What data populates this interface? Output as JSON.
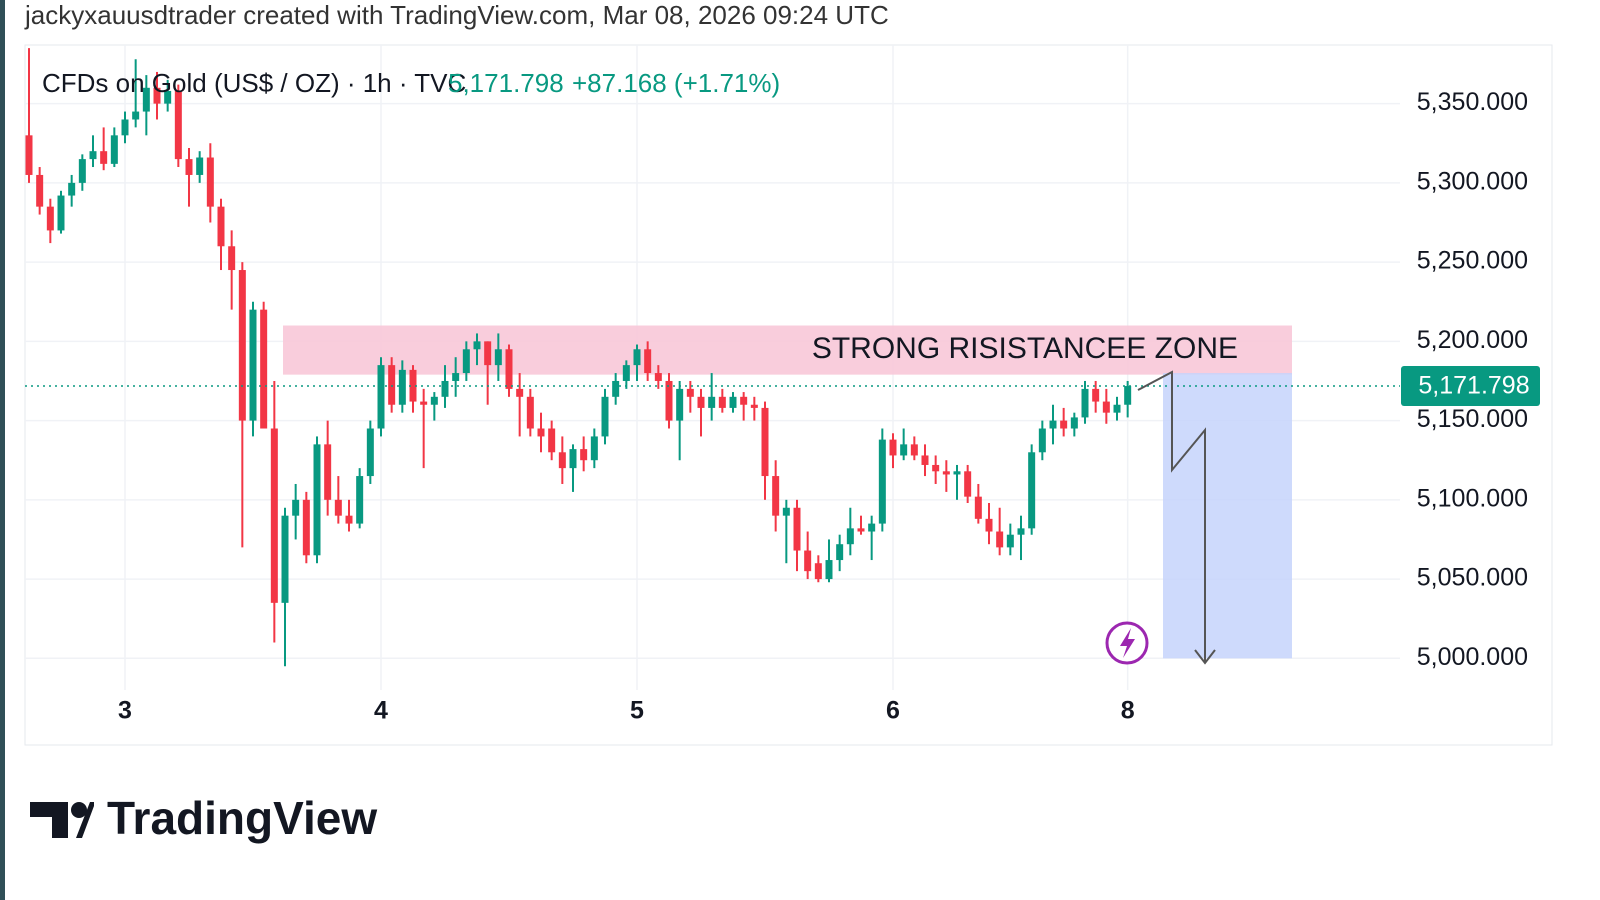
{
  "chart_data": {
    "type": "candlestick",
    "title": "jackyxauusdtrader created with TradingView.com, Mar 08, 2026 09:24 UTC",
    "symbol": "CFDs on Gold (US$ / OZ) · 1h · TVC",
    "last_price": "5,171.798",
    "change": "+87.168 (+1.71%)",
    "brand": "TradingView",
    "up_color": "#089981",
    "down_color": "#f23645",
    "grid": true,
    "ylim": [
      4980,
      5387
    ],
    "yticks": [
      {
        "value": 5000,
        "label": "5,000.000"
      },
      {
        "value": 5050,
        "label": "5,050.000"
      },
      {
        "value": 5100,
        "label": "5,100.000"
      },
      {
        "value": 5150,
        "label": "5,150.000"
      },
      {
        "value": 5200,
        "label": "5,200.000"
      },
      {
        "value": 5250,
        "label": "5,250.000"
      },
      {
        "value": 5300,
        "label": "5,300.000"
      },
      {
        "value": 5350,
        "label": "5,350.000"
      }
    ],
    "categories": [
      null,
      null,
      null,
      null,
      null,
      null,
      null,
      null,
      null,
      "3",
      null,
      null,
      null,
      null,
      null,
      null,
      null,
      null,
      null,
      null,
      null,
      null,
      null,
      null,
      null,
      null,
      null,
      null,
      null,
      null,
      null,
      null,
      null,
      "4",
      null,
      null,
      null,
      null,
      null,
      null,
      null,
      null,
      null,
      null,
      null,
      null,
      null,
      null,
      null,
      null,
      null,
      null,
      null,
      null,
      null,
      null,
      null,
      "5",
      null,
      null,
      null,
      null,
      null,
      null,
      null,
      null,
      null,
      null,
      null,
      null,
      null,
      null,
      null,
      null,
      null,
      null,
      null,
      null,
      null,
      null,
      null,
      "6",
      null,
      null,
      null,
      null,
      null,
      null,
      null,
      null,
      null,
      null,
      null,
      null,
      null,
      null,
      null,
      null,
      null,
      null,
      null,
      null,
      null,
      "8"
    ],
    "ohlc": {
      "open": [
        5330,
        5305,
        5285,
        5270,
        5292,
        5300,
        5315,
        5320,
        5312,
        5330,
        5340,
        5345,
        5360,
        5350,
        5358,
        5315,
        5305,
        5316,
        5285,
        5260,
        5245,
        5150,
        5220,
        5145,
        5035,
        5090,
        5100,
        5065,
        5135,
        5100,
        5090,
        5085,
        5115,
        5145,
        5185,
        5160,
        5182,
        5162,
        5160,
        5165,
        5175,
        5180,
        5195,
        5200,
        5185,
        5195,
        5170,
        5165,
        5145,
        5145,
        5130,
        5120,
        5132,
        5125,
        5140,
        5165,
        5175,
        5185,
        5195,
        5180,
        5175,
        5150,
        5170,
        5165,
        5158,
        5165,
        5158,
        5165,
        5160,
        5158,
        5115,
        5090,
        5095,
        5068,
        5060,
        5050,
        5062,
        5072,
        5082,
        5080,
        5085,
        5138,
        5128,
        5135,
        5128,
        5122,
        5118,
        5116,
        5118,
        5102,
        5088,
        5080,
        5070,
        5078,
        5082,
        5130,
        5145,
        5150,
        5145,
        5152,
        5170,
        5162,
        5155,
        5160
      ],
      "high": [
        5385,
        5310,
        5290,
        5295,
        5305,
        5318,
        5330,
        5335,
        5335,
        5345,
        5378,
        5368,
        5370,
        5365,
        5362,
        5322,
        5320,
        5325,
        5290,
        5270,
        5250,
        5225,
        5225,
        5175,
        5095,
        5110,
        5105,
        5140,
        5150,
        5115,
        5100,
        5120,
        5150,
        5190,
        5190,
        5188,
        5185,
        5170,
        5168,
        5185,
        5190,
        5200,
        5205,
        5200,
        5205,
        5198,
        5180,
        5170,
        5155,
        5150,
        5140,
        5135,
        5140,
        5145,
        5170,
        5180,
        5188,
        5198,
        5200,
        5185,
        5180,
        5175,
        5175,
        5170,
        5180,
        5170,
        5168,
        5168,
        5165,
        5162,
        5125,
        5100,
        5100,
        5080,
        5065,
        5075,
        5078,
        5095,
        5090,
        5090,
        5145,
        5142,
        5145,
        5140,
        5135,
        5128,
        5125,
        5122,
        5122,
        5110,
        5098,
        5095,
        5085,
        5090,
        5135,
        5150,
        5160,
        5158,
        5155,
        5175,
        5175,
        5170,
        5165,
        5175
      ],
      "low": [
        5300,
        5280,
        5262,
        5268,
        5285,
        5295,
        5310,
        5308,
        5310,
        5325,
        5335,
        5330,
        5340,
        5345,
        5310,
        5285,
        5300,
        5275,
        5245,
        5220,
        5070,
        5140,
        5145,
        5010,
        4995,
        5075,
        5060,
        5060,
        5090,
        5085,
        5080,
        5082,
        5110,
        5140,
        5155,
        5155,
        5155,
        5120,
        5150,
        5158,
        5165,
        5175,
        5185,
        5160,
        5175,
        5165,
        5140,
        5140,
        5130,
        5125,
        5110,
        5105,
        5118,
        5120,
        5135,
        5160,
        5170,
        5175,
        5175,
        5170,
        5145,
        5125,
        5155,
        5140,
        5150,
        5155,
        5155,
        5150,
        5150,
        5100,
        5080,
        5060,
        5055,
        5050,
        5048,
        5048,
        5055,
        5065,
        5078,
        5062,
        5080,
        5120,
        5125,
        5125,
        5115,
        5110,
        5105,
        5100,
        5098,
        5085,
        5072,
        5065,
        5065,
        5062,
        5078,
        5125,
        5135,
        5140,
        5140,
        5148,
        5155,
        5148,
        5150,
        5152
      ],
      "close": [
        5305,
        5285,
        5270,
        5292,
        5300,
        5315,
        5320,
        5312,
        5330,
        5340,
        5345,
        5360,
        5350,
        5358,
        5315,
        5305,
        5316,
        5285,
        5260,
        5245,
        5150,
        5220,
        5145,
        5035,
        5090,
        5100,
        5065,
        5135,
        5100,
        5090,
        5085,
        5115,
        5145,
        5185,
        5160,
        5182,
        5162,
        5160,
        5165,
        5175,
        5180,
        5195,
        5200,
        5185,
        5195,
        5170,
        5165,
        5145,
        5140,
        5130,
        5120,
        5132,
        5125,
        5140,
        5165,
        5175,
        5185,
        5195,
        5180,
        5175,
        5150,
        5170,
        5165,
        5158,
        5165,
        5158,
        5165,
        5160,
        5158,
        5115,
        5090,
        5095,
        5068,
        5055,
        5050,
        5062,
        5072,
        5082,
        5080,
        5085,
        5138,
        5128,
        5135,
        5128,
        5122,
        5118,
        5116,
        5118,
        5102,
        5088,
        5080,
        5070,
        5078,
        5082,
        5130,
        5145,
        5150,
        5145,
        5152,
        5170,
        5162,
        5155,
        5160,
        5171.798
      ]
    },
    "resistance_zone": {
      "label": "STRONG RISISTANCEE ZONE",
      "range": [
        5179,
        5210
      ]
    },
    "target_zone": [
      5000,
      5180
    ]
  }
}
